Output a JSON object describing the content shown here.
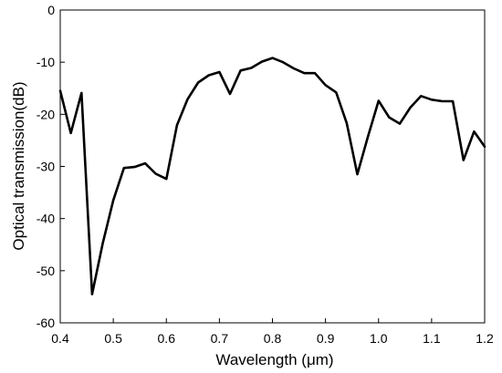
{
  "chart_data": {
    "type": "line",
    "xlabel": "Wavelength (μm)",
    "ylabel": "Optical transmission(dB)",
    "xlim": [
      0.4,
      1.2
    ],
    "ylim": [
      -60,
      0
    ],
    "x_ticks": [
      "0.4",
      "0.5",
      "0.6",
      "0.7",
      "0.8",
      "0.9",
      "1.0",
      "1.1",
      "1.2"
    ],
    "y_ticks": [
      "0",
      "-10",
      "-20",
      "-30",
      "-40",
      "-50",
      "-60"
    ],
    "grid": false,
    "line_color": "#000000",
    "series": [
      {
        "x": [
          0.4,
          0.42,
          0.44,
          0.46,
          0.48,
          0.5,
          0.52,
          0.54,
          0.56,
          0.58,
          0.6,
          0.62,
          0.64,
          0.66,
          0.68,
          0.7,
          0.72,
          0.74,
          0.76,
          0.78,
          0.8,
          0.82,
          0.84,
          0.86,
          0.88,
          0.9,
          0.92,
          0.94,
          0.96,
          0.98,
          1.0,
          1.02,
          1.04,
          1.06,
          1.08,
          1.1,
          1.12,
          1.14,
          1.16,
          1.18,
          1.2
        ],
        "y": [
          -15.5,
          -23.6,
          -15.9,
          -54.5,
          -44.8,
          -36.5,
          -30.3,
          -30.1,
          -29.4,
          -31.4,
          -32.4,
          -22.1,
          -17.1,
          -13.9,
          -12.5,
          -11.9,
          -16.1,
          -11.6,
          -11.1,
          -9.9,
          -9.2,
          -10.0,
          -11.2,
          -12.1,
          -12.1,
          -14.4,
          -15.8,
          -21.7,
          -31.5,
          -24.3,
          -17.4,
          -20.6,
          -21.8,
          -18.7,
          -16.5,
          -17.2,
          -17.5,
          -17.5,
          -28.8,
          -23.3,
          -26.2
        ]
      }
    ]
  }
}
